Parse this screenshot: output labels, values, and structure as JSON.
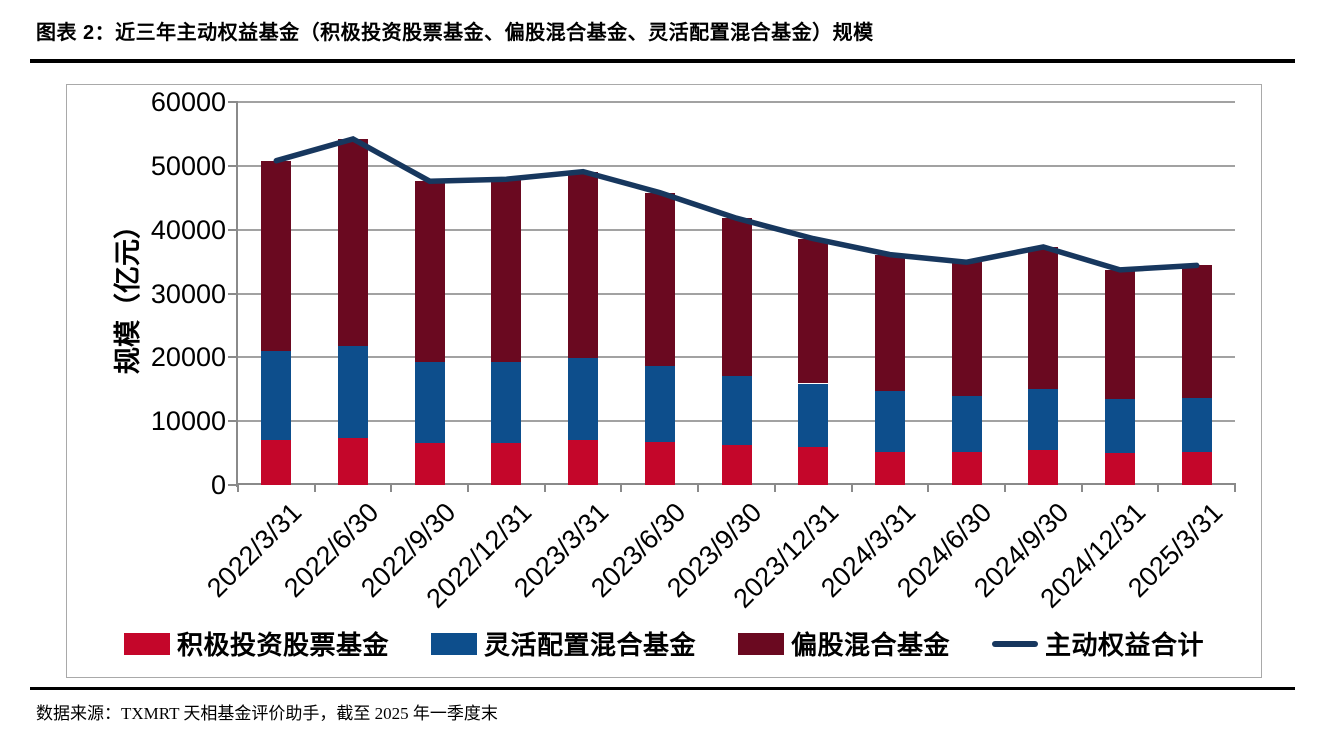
{
  "page": {
    "title": "图表 2：近三年主动权益基金（积极投资股票基金、偏股混合基金、灵活配置混合基金）规模",
    "source_note": "数据来源：TXMRT 天相基金评价助手，截至 2025 年一季度末"
  },
  "chart_data": {
    "type": "bar",
    "subtype": "stacked-bars-with-total-line",
    "title": "",
    "xlabel": "",
    "ylabel": "规模（亿元）",
    "ylim": [
      0,
      60000
    ],
    "yticks": [
      0,
      10000,
      20000,
      30000,
      40000,
      50000,
      60000
    ],
    "grid": true,
    "legend_position": "bottom",
    "categories": [
      "2022/3/31",
      "2022/6/30",
      "2022/9/30",
      "2022/12/31",
      "2023/3/31",
      "2023/6/30",
      "2023/9/30",
      "2023/12/31",
      "2024/3/31",
      "2024/6/30",
      "2024/9/30",
      "2024/12/31",
      "2025/3/31"
    ],
    "series": [
      {
        "name": "积极投资股票基金",
        "kind": "bar",
        "color": "#C4062A",
        "values": [
          7000,
          7300,
          6600,
          6600,
          7000,
          6700,
          6300,
          5900,
          5200,
          5100,
          5500,
          5000,
          5200
        ]
      },
      {
        "name": "灵活配置混合基金",
        "kind": "bar",
        "color": "#0D4E8C",
        "values": [
          14000,
          14500,
          12700,
          12700,
          12900,
          11900,
          10700,
          10000,
          9600,
          8900,
          9600,
          8500,
          8400
        ]
      },
      {
        "name": "偏股混合基金",
        "kind": "bar",
        "color": "#6A0920",
        "values": [
          29800,
          32400,
          28300,
          28600,
          29200,
          27200,
          24800,
          22700,
          21300,
          20900,
          22200,
          20200,
          20800
        ]
      },
      {
        "name": "主动权益合计",
        "kind": "line",
        "color": "#17375E",
        "values": [
          50800,
          54200,
          47600,
          47900,
          49100,
          45800,
          41800,
          38600,
          36100,
          34900,
          37300,
          33700,
          34400
        ]
      }
    ]
  },
  "colors": {
    "grid": "#A2A2A2",
    "axis": "#8A8A8A",
    "chart_border": "#A9A9A9",
    "rule": "#000000"
  }
}
